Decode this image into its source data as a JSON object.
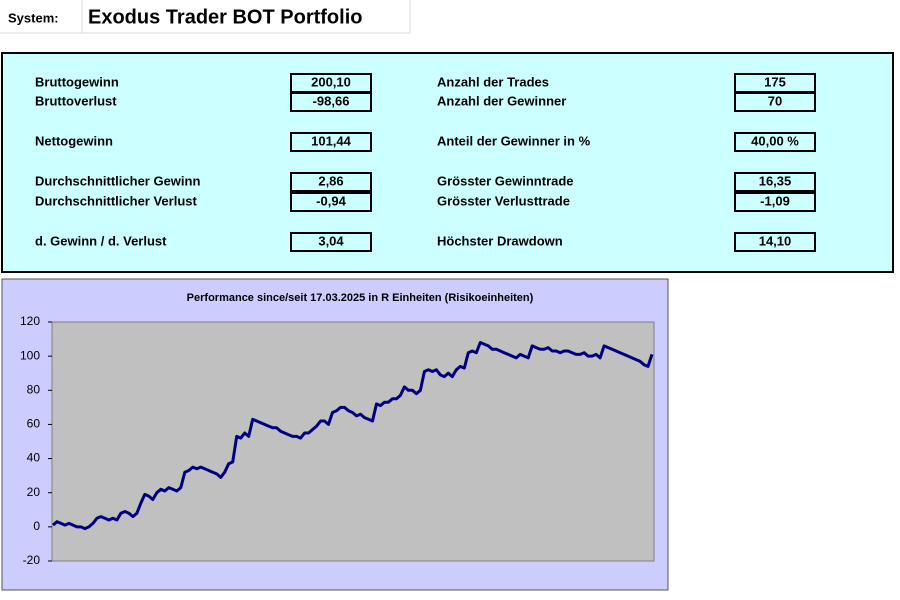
{
  "header": {
    "label": "System:",
    "title": "Exodus Trader BOT Portfolio"
  },
  "stats": {
    "left": [
      {
        "label": "Bruttogewinn",
        "value": "200,10"
      },
      {
        "label": "Bruttoverlust",
        "value": "-98,66"
      },
      {
        "label": "Nettogewinn",
        "value": "101,44"
      },
      {
        "label": "Durchschnittlicher Gewinn",
        "value": "2,86"
      },
      {
        "label": "Durchschnittlicher Verlust",
        "value": "-0,94"
      },
      {
        "label": "d. Gewinn / d. Verlust",
        "value": "3,04"
      }
    ],
    "right": [
      {
        "label": "Anzahl der Trades",
        "value": "175"
      },
      {
        "label": "Anzahl der Gewinner",
        "value": "70"
      },
      {
        "label": "Anteil der Gewinner in %",
        "value": "40,00 %"
      },
      {
        "label": "Grösster Gewinntrade",
        "value": "16,35"
      },
      {
        "label": "Grösster Verlusttrade",
        "value": "-1,09"
      },
      {
        "label": "Höchster Drawdown",
        "value": "14,10"
      }
    ]
  },
  "chart_data": {
    "type": "line",
    "title": "Performance since/seit 17.03.2025 in R Einheiten (Risikoeinheiten)",
    "color": "#000080",
    "ylim": [
      -20,
      120
    ],
    "yticks": [
      -20,
      0,
      20,
      40,
      60,
      80,
      100,
      120
    ],
    "grid": false,
    "values": [
      1,
      3,
      2,
      1,
      2,
      1,
      0,
      0,
      -1,
      0,
      2,
      5,
      6,
      5,
      4,
      5,
      4,
      8,
      9,
      8,
      6,
      8,
      14,
      19,
      18,
      16,
      20,
      22,
      21,
      23,
      22,
      21,
      23,
      32,
      33,
      35,
      34,
      35,
      34,
      33,
      32,
      31,
      29,
      32,
      37,
      38,
      53,
      52,
      55,
      53,
      63,
      62,
      61,
      60,
      59,
      58,
      58,
      56,
      55,
      54,
      53,
      53,
      52,
      55,
      55,
      57,
      59,
      62,
      62,
      60,
      67,
      68,
      70,
      70,
      68,
      67,
      65,
      66,
      64,
      63,
      62,
      72,
      71,
      73,
      73,
      75,
      75,
      77,
      82,
      80,
      80,
      78,
      80,
      91,
      92,
      91,
      92,
      89,
      88,
      90,
      88,
      92,
      94,
      93,
      102,
      103,
      102,
      108,
      107,
      106,
      104,
      104,
      103,
      102,
      101,
      100,
      99,
      101,
      100,
      99,
      106,
      105,
      104,
      104,
      105,
      103,
      103,
      102,
      103,
      103,
      102,
      101,
      101,
      102,
      100,
      100,
      101,
      99,
      106,
      105,
      104,
      103,
      102,
      101,
      100,
      99,
      98,
      97,
      95,
      94,
      101
    ]
  }
}
